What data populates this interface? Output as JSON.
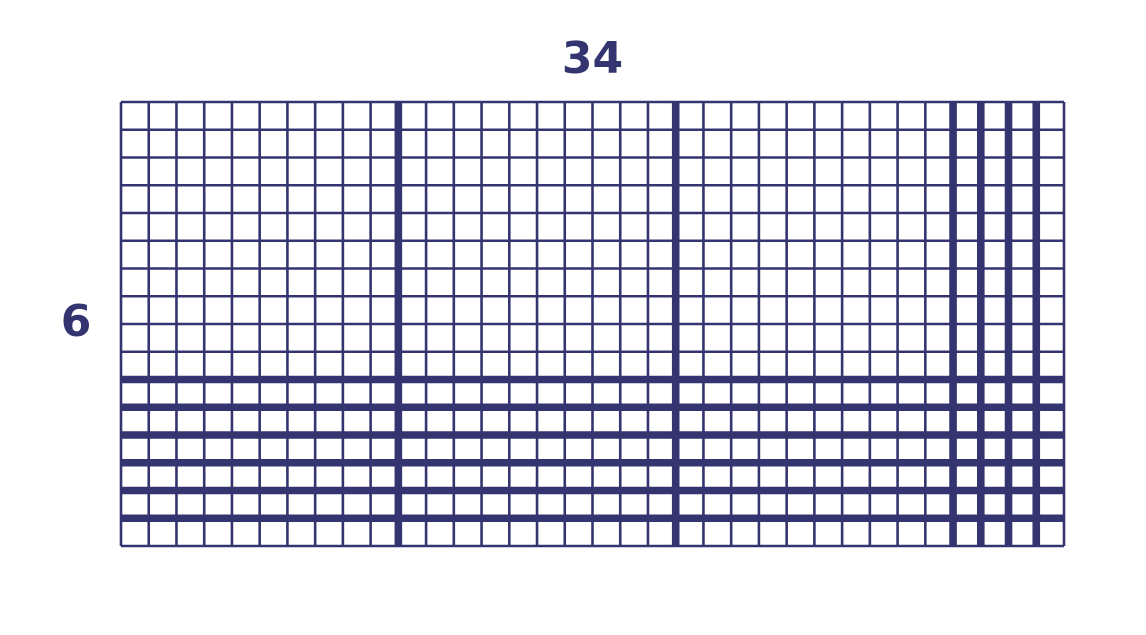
{
  "diagram": {
    "top_label": "34",
    "left_label": "6",
    "grid": {
      "columns": 34,
      "rows": 16,
      "thick_column_lines": [
        10,
        20,
        30,
        31,
        32,
        33
      ],
      "thick_row_lines": [
        10,
        11,
        12,
        13,
        14,
        15
      ],
      "line_color": "#343570",
      "background_color": "#ffffff",
      "thin_line_width": 2.6,
      "thick_line_width": 7.6
    }
  }
}
